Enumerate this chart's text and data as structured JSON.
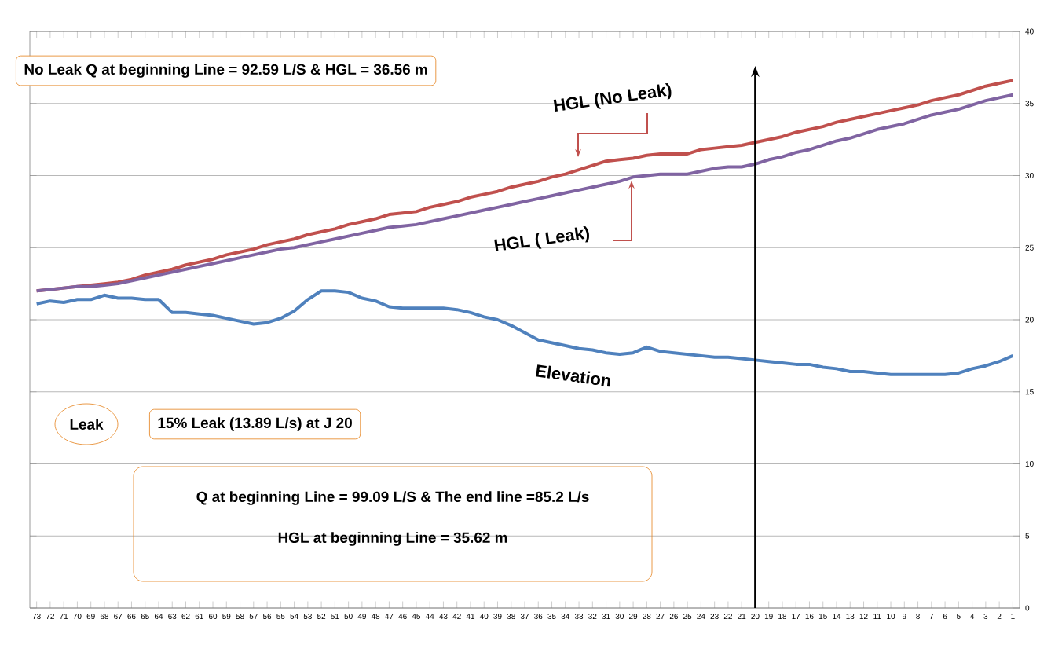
{
  "chart_data": {
    "type": "line",
    "categories": [
      "73",
      "72",
      "71",
      "70",
      "69",
      "68",
      "67",
      "66",
      "65",
      "64",
      "63",
      "62",
      "61",
      "60",
      "59",
      "58",
      "57",
      "56",
      "55",
      "54",
      "53",
      "52",
      "51",
      "50",
      "49",
      "48",
      "47",
      "46",
      "45",
      "44",
      "43",
      "42",
      "41",
      "40",
      "39",
      "38",
      "37",
      "36",
      "35",
      "34",
      "33",
      "32",
      "31",
      "30",
      "29",
      "28",
      "27",
      "26",
      "25",
      "24",
      "23",
      "22",
      "21",
      "20",
      "19",
      "18",
      "17",
      "16",
      "15",
      "14",
      "13",
      "12",
      "11",
      "10",
      "9",
      "8",
      "7",
      "6",
      "5",
      "4",
      "3",
      "2",
      "1"
    ],
    "series": [
      {
        "name": "HGL (No Leak)",
        "color": "#c0504d",
        "values": [
          22.0,
          22.1,
          22.2,
          22.3,
          22.4,
          22.5,
          22.6,
          22.8,
          23.1,
          23.3,
          23.5,
          23.8,
          24.0,
          24.2,
          24.5,
          24.7,
          24.9,
          25.2,
          25.4,
          25.6,
          25.9,
          26.1,
          26.3,
          26.6,
          26.8,
          27.0,
          27.3,
          27.4,
          27.5,
          27.8,
          28.0,
          28.2,
          28.5,
          28.7,
          28.9,
          29.2,
          29.4,
          29.6,
          29.9,
          30.1,
          30.4,
          30.7,
          31.0,
          31.1,
          31.2,
          31.4,
          31.5,
          31.5,
          31.5,
          31.8,
          31.9,
          32.0,
          32.1,
          32.3,
          32.5,
          32.7,
          33.0,
          33.2,
          33.4,
          33.7,
          33.9,
          34.1,
          34.3,
          34.5,
          34.7,
          34.9,
          35.2,
          35.4,
          35.6,
          35.9,
          36.2,
          36.4,
          36.6
        ]
      },
      {
        "name": "HGL ( Leak)",
        "color": "#8064a2",
        "values": [
          22.0,
          22.1,
          22.2,
          22.3,
          22.3,
          22.4,
          22.5,
          22.7,
          22.9,
          23.1,
          23.3,
          23.5,
          23.7,
          23.9,
          24.1,
          24.3,
          24.5,
          24.7,
          24.9,
          25.0,
          25.2,
          25.4,
          25.6,
          25.8,
          26.0,
          26.2,
          26.4,
          26.5,
          26.6,
          26.8,
          27.0,
          27.2,
          27.4,
          27.6,
          27.8,
          28.0,
          28.2,
          28.4,
          28.6,
          28.8,
          29.0,
          29.2,
          29.4,
          29.6,
          29.9,
          30.0,
          30.1,
          30.1,
          30.1,
          30.3,
          30.5,
          30.6,
          30.6,
          30.8,
          31.1,
          31.3,
          31.6,
          31.8,
          32.1,
          32.4,
          32.6,
          32.9,
          33.2,
          33.4,
          33.6,
          33.9,
          34.2,
          34.4,
          34.6,
          34.9,
          35.2,
          35.4,
          35.6
        ]
      },
      {
        "name": "Elevation",
        "color": "#4f81bd",
        "values": [
          21.1,
          21.3,
          21.2,
          21.4,
          21.4,
          21.7,
          21.5,
          21.5,
          21.4,
          21.4,
          20.5,
          20.5,
          20.4,
          20.3,
          20.1,
          19.9,
          19.7,
          19.8,
          20.1,
          20.6,
          21.4,
          22.0,
          22.0,
          21.9,
          21.5,
          21.3,
          20.9,
          20.8,
          20.8,
          20.8,
          20.8,
          20.7,
          20.5,
          20.2,
          20.0,
          19.6,
          19.1,
          18.6,
          18.4,
          18.2,
          18.0,
          17.9,
          17.7,
          17.6,
          17.7,
          18.1,
          17.8,
          17.7,
          17.6,
          17.5,
          17.4,
          17.4,
          17.3,
          17.2,
          17.1,
          17.0,
          16.9,
          16.9,
          16.7,
          16.6,
          16.4,
          16.4,
          16.3,
          16.2,
          16.2,
          16.2,
          16.2,
          16.2,
          16.3,
          16.6,
          16.8,
          17.1,
          17.5
        ]
      }
    ],
    "ylim": [
      0,
      40
    ],
    "yticks": [
      0,
      5,
      10,
      15,
      20,
      25,
      30,
      35,
      40
    ],
    "grid": "y",
    "ref_lines": [
      {
        "axis": "x",
        "value": "20"
      }
    ],
    "annotations": [
      "No Leak   Q at beginning Line = 92.59 L/S  &  HGL = 36.56 m",
      "Leak",
      "15% Leak (13.89 L/s) at  J 20",
      "Q at beginning Line = 99.09 L/S & The end line =85.2 L/s",
      "HGL at beginning Line = 35.62 m"
    ]
  }
}
